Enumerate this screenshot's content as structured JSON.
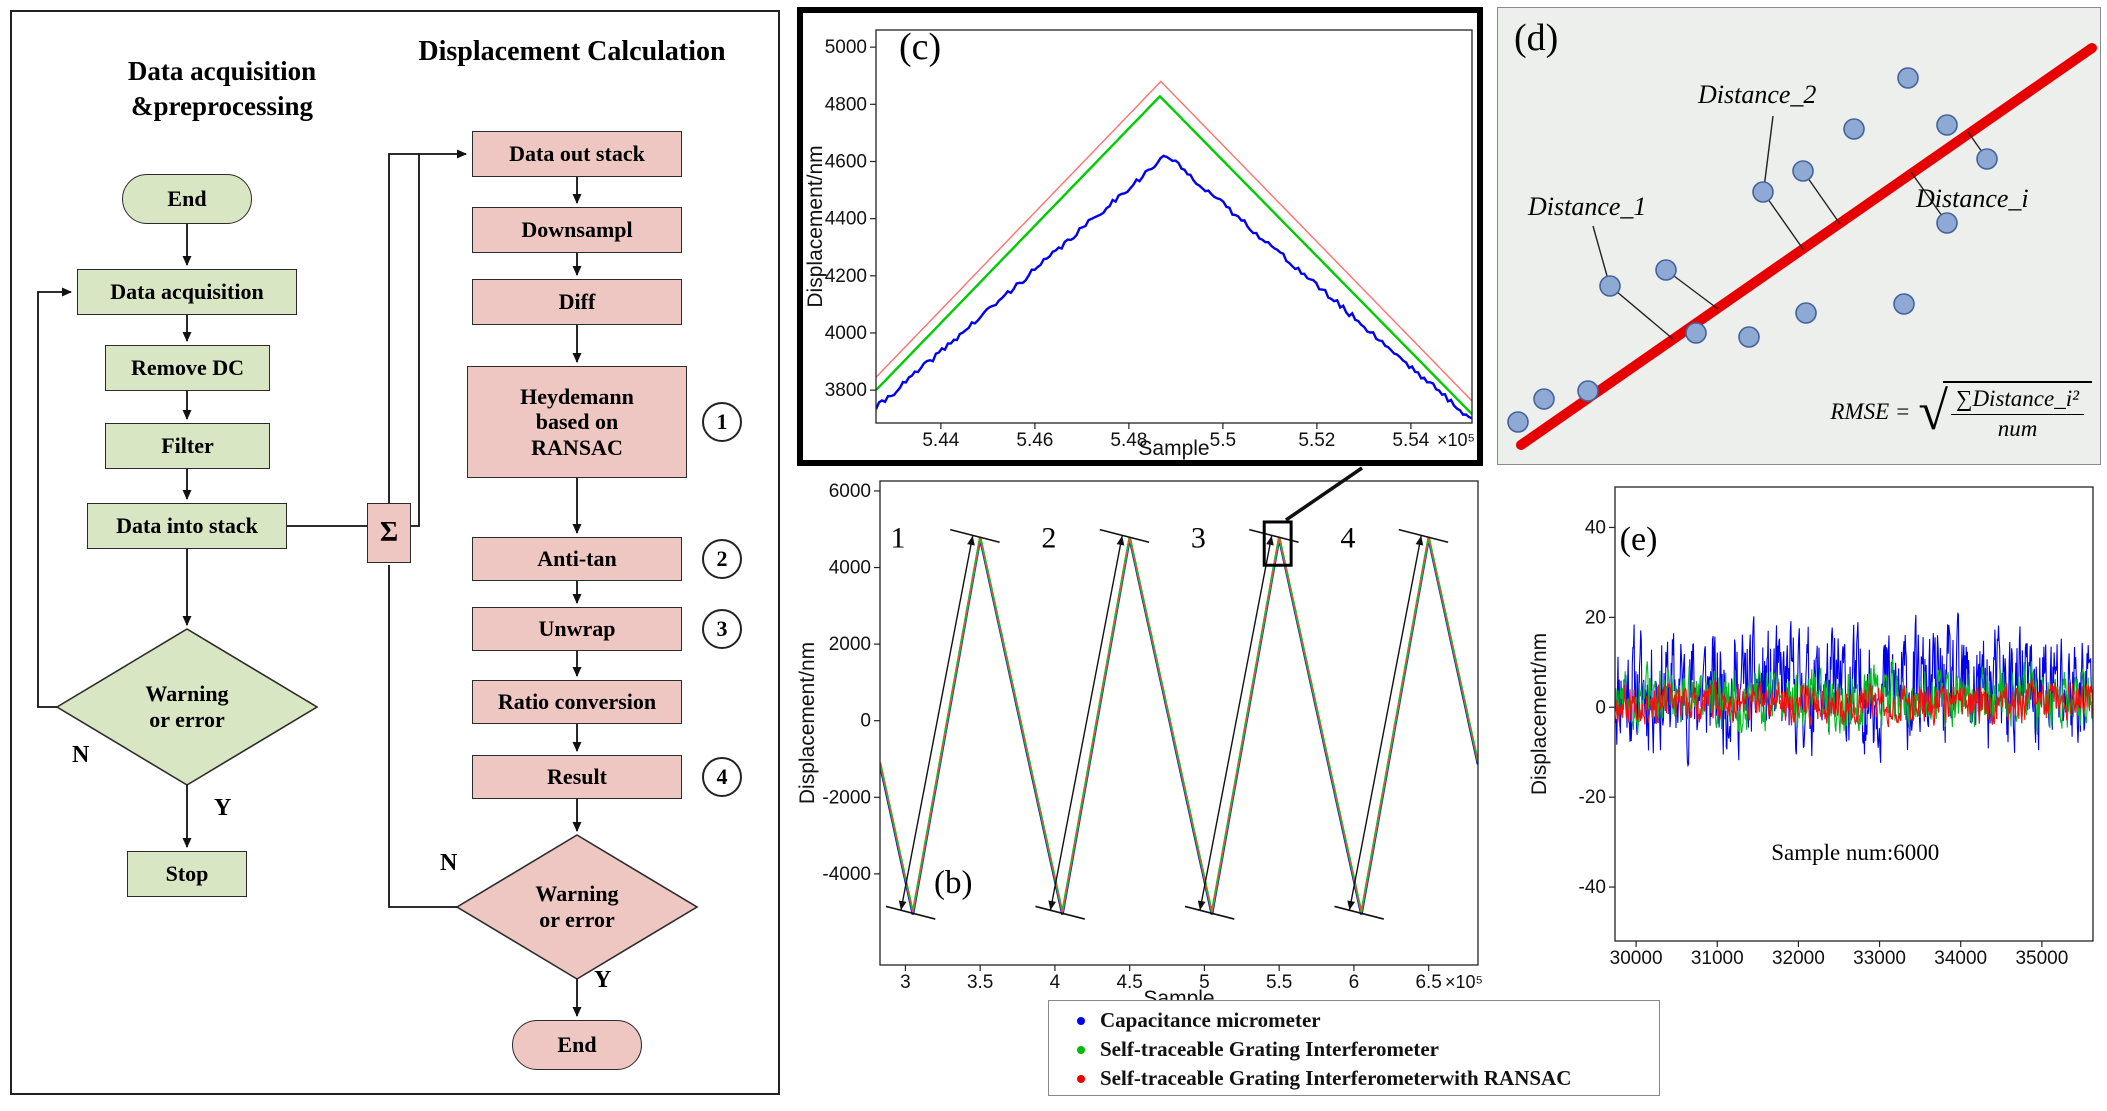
{
  "flowchart": {
    "left": {
      "title": "Data acquisition\n&preprocessing",
      "nodes": {
        "end": "End",
        "acq": "Data acquisition",
        "removedc": "Remove DC",
        "filter": "Filter",
        "intostack": "Data into stack",
        "warn": "Warning\nor error",
        "stop": "Stop"
      },
      "labels": {
        "n": "N",
        "y": "Y"
      }
    },
    "right": {
      "title": "Displacement Calculation",
      "nodes": {
        "outstack": "Data out stack",
        "downsampl": "Downsampl",
        "diff": "Diff",
        "heydemann": "Heydemann\nbased on\nRANSAC",
        "antitan": "Anti-tan",
        "unwrap": "Unwrap",
        "ratio": "Ratio conversion",
        "result": "Result",
        "warn": "Warning\nor error",
        "end": "End",
        "sigma": "Σ"
      },
      "labels": {
        "n": "N",
        "y": "Y"
      },
      "steps": [
        "1",
        "2",
        "3",
        "4"
      ]
    }
  },
  "panel_labels": {
    "b": "(b)",
    "c": "(c)",
    "d": "(d)",
    "e": "(e)"
  },
  "panel_d": {
    "labels": {
      "d1": "Distance_1",
      "d2": "Distance_2",
      "di": "Distance_i"
    },
    "formula": {
      "lhs": "RMSE =",
      "numerator": "∑Distance_i²",
      "denominator": "num"
    },
    "red_line": [
      [
        23,
        437
      ],
      [
        594,
        40
      ]
    ],
    "dots": [
      [
        20,
        414
      ],
      [
        46,
        391
      ],
      [
        90,
        383
      ],
      [
        112,
        278
      ],
      [
        168,
        262
      ],
      [
        198,
        325
      ],
      [
        251,
        329
      ],
      [
        308,
        305
      ],
      [
        265,
        184
      ],
      [
        305,
        163
      ],
      [
        356,
        121
      ],
      [
        410,
        70
      ],
      [
        449,
        117
      ],
      [
        489,
        151
      ],
      [
        449,
        215
      ],
      [
        406,
        296
      ]
    ],
    "segments": [
      [
        [
          275,
          108
        ],
        [
          266,
          180
        ]
      ],
      [
        [
          265,
          184
        ],
        [
          305,
          241
        ]
      ],
      [
        [
          305,
          163
        ],
        [
          342,
          216
        ]
      ],
      [
        [
          95,
          218
        ],
        [
          111,
          275
        ]
      ],
      [
        [
          112,
          278
        ],
        [
          175,
          331
        ]
      ],
      [
        [
          168,
          262
        ],
        [
          220,
          301
        ]
      ],
      [
        [
          489,
          151
        ],
        [
          470,
          124
        ]
      ],
      [
        [
          449,
          215
        ],
        [
          413,
          164
        ]
      ]
    ],
    "colors": {
      "line": "#e60000",
      "dot_fill": "#8ea9d4",
      "dot_stroke": "#44639c",
      "bg": "#edefed"
    }
  },
  "legend": {
    "items": [
      {
        "label": "Capacitance micrometer",
        "color": "#0000ee"
      },
      {
        "label": "Self-traceable Grating Interferometer",
        "color": "#00bb00"
      },
      {
        "label": "Self-traceable Grating Interferometerwith RANSAC",
        "color": "#ee0000"
      }
    ]
  },
  "chart_data": [
    {
      "id": "c",
      "type": "line",
      "xlabel": "Sample",
      "ylabel": "Displacement/nm",
      "x_exponent": "×10⁵",
      "xlim": [
        5.4262,
        5.553
      ],
      "ylim": [
        3685,
        5060
      ],
      "xticks": [
        5.44,
        5.46,
        5.48,
        5.5,
        5.52,
        5.54
      ],
      "yticks": [
        3800,
        4000,
        4200,
        4400,
        4600,
        4800,
        5000
      ],
      "series": [
        {
          "name": "Self-traceable Grating Interferometerwith RANSAC",
          "color": "#ff7070",
          "width": 1.4,
          "noise": 0,
          "points": [
            [
              5.4262,
              3845
            ],
            [
              5.4868,
              4880
            ],
            [
              5.553,
              3762
            ]
          ]
        },
        {
          "name": "Self-traceable Grating Interferometer",
          "color": "#00cc00",
          "width": 2.4,
          "noise": 0,
          "points": [
            [
              5.4262,
              3800
            ],
            [
              5.4866,
              4828
            ],
            [
              5.553,
              3716
            ]
          ]
        },
        {
          "name": "Capacitance micrometer",
          "color": "#0000ee",
          "width": 2.4,
          "noise": 10,
          "seed": 7,
          "points": [
            [
              5.4262,
              3738
            ],
            [
              5.488,
              4622
            ],
            [
              5.553,
              3696
            ]
          ]
        }
      ]
    },
    {
      "id": "b",
      "type": "line",
      "xlabel": "Sample",
      "ylabel": "Displacement/nm",
      "x_exponent": "×10⁵",
      "xlim": [
        2.83,
        6.83
      ],
      "ylim": [
        -6380,
        6260
      ],
      "xticks": [
        3,
        3.5,
        4,
        4.5,
        5,
        5.5,
        6,
        6.5
      ],
      "yticks": [
        -4000,
        -2000,
        0,
        2000,
        4000,
        6000
      ],
      "series": [
        {
          "name": "Capacitance micrometer",
          "color": "#0000ee",
          "width": 2.6,
          "noise": 0,
          "points": [
            [
              2.83,
              -1140
            ],
            [
              3.05,
              -5060
            ],
            [
              3.5,
              4760
            ],
            [
              4.05,
              -5060
            ],
            [
              4.5,
              4760
            ],
            [
              5.05,
              -5060
            ],
            [
              5.5,
              4760
            ],
            [
              6.05,
              -5060
            ],
            [
              6.5,
              4760
            ],
            [
              6.83,
              -1140
            ]
          ]
        },
        {
          "name": "Self-traceable Grating Interferometer",
          "color": "#00cc00",
          "width": 2.2,
          "noise": 0,
          "points": [
            [
              2.83,
              -1080
            ],
            [
              3.05,
              -5000
            ],
            [
              3.5,
              4800
            ],
            [
              4.05,
              -5000
            ],
            [
              4.5,
              4800
            ],
            [
              5.05,
              -5000
            ],
            [
              5.5,
              4800
            ],
            [
              6.05,
              -5000
            ],
            [
              6.5,
              4800
            ],
            [
              6.83,
              -1080
            ]
          ]
        },
        {
          "name": "Self-traceable Grating Interferometerwith RANSAC",
          "color": "#ff4444",
          "width": 1,
          "noise": 0,
          "points": [
            [
              2.83,
              -1080
            ],
            [
              3.05,
              -5000
            ],
            [
              3.5,
              4800
            ],
            [
              4.05,
              -5000
            ],
            [
              4.5,
              4800
            ],
            [
              5.05,
              -5000
            ],
            [
              5.5,
              4800
            ],
            [
              6.05,
              -5000
            ],
            [
              6.5,
              4800
            ],
            [
              6.83,
              -1080
            ]
          ]
        }
      ],
      "annotations": {
        "texts": [
          {
            "t": "1",
            "x": 2.95,
            "y": 4520,
            "serif": true,
            "size": 30
          },
          {
            "t": "2",
            "x": 3.96,
            "y": 4520,
            "serif": true,
            "size": 30
          },
          {
            "t": "3",
            "x": 4.96,
            "y": 4520,
            "serif": true,
            "size": 30
          },
          {
            "t": "4",
            "x": 5.96,
            "y": 4520,
            "serif": true,
            "size": 30
          },
          {
            "t": "(b)",
            "x": 3.32,
            "y": -4500,
            "serif": true,
            "size": 33
          }
        ],
        "arrows": [
          [
            2.97,
            -4950,
            3.45,
            4830
          ],
          [
            3.97,
            -4950,
            4.45,
            4830
          ],
          [
            4.97,
            -4950,
            5.45,
            4830
          ],
          [
            5.97,
            -4950,
            6.45,
            4830
          ]
        ],
        "caps": [
          [
            2.87,
            -4850,
            3.2,
            -5180
          ],
          [
            3.87,
            -4850,
            4.2,
            -5180
          ],
          [
            4.87,
            -4850,
            5.2,
            -5180
          ],
          [
            5.87,
            -4850,
            6.2,
            -5180
          ],
          [
            3.3,
            4990,
            3.63,
            4660
          ],
          [
            4.3,
            4990,
            4.63,
            4660
          ],
          [
            5.3,
            4990,
            5.63,
            4660
          ],
          [
            6.3,
            4990,
            6.63,
            4660
          ]
        ],
        "rect": {
          "x1": 5.4,
          "y1": 4060,
          "x2": 5.58,
          "y2": 5190
        }
      }
    },
    {
      "id": "e",
      "type": "line",
      "xlabel": "",
      "ylabel": "Displacement/nm",
      "xlim": [
        29740,
        35630
      ],
      "ylim": [
        -52,
        49
      ],
      "xticks": [
        30000,
        31000,
        32000,
        33000,
        34000,
        35000
      ],
      "yticks": [
        -40,
        -20,
        0,
        20,
        40
      ],
      "series": [
        {
          "name": "Capacitance micrometer",
          "color": "#0000ee",
          "width": 1.1,
          "gen": "noise",
          "n": 800,
          "mean": 4,
          "amp": 20,
          "seed": 11
        },
        {
          "name": "Self-traceable Grating Interferometer",
          "color": "#00bb22",
          "width": 1.1,
          "gen": "noise",
          "n": 800,
          "mean": 2,
          "amp": 10,
          "seed": 22
        },
        {
          "name": "Self-traceable Grating Interferometerwith RANSAC",
          "color": "#ee1111",
          "width": 1.1,
          "gen": "noise",
          "n": 800,
          "mean": 1,
          "amp": 6.5,
          "seed": 33
        }
      ],
      "annotations": {
        "texts": [
          {
            "t": "(e)",
            "x": 30030,
            "y": 35,
            "serif": true,
            "size": 34
          },
          {
            "t": "Sample num:6000",
            "x": 32700,
            "y": -34,
            "serif": true,
            "size": 23
          }
        ]
      }
    }
  ]
}
